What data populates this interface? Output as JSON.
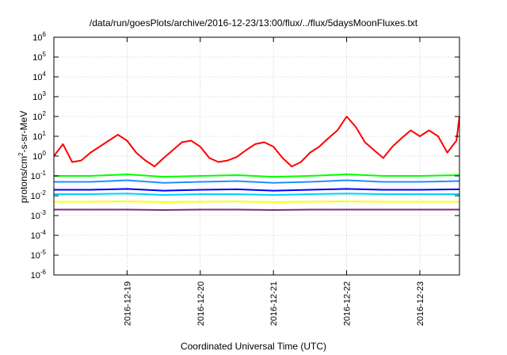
{
  "chart_data": {
    "type": "line",
    "title": "/data/run/goesPlots/archive/2016-12-23/13:00/flux/../flux/5daysMoonFluxes.txt",
    "xlabel": "Coordinated Universal Time (UTC)",
    "ylabel": "protons/cm²-s-sr-MeV",
    "ylabel_parts": {
      "pre": "protons/cm",
      "sup": "2",
      "post": "-s-sr-MeV"
    },
    "x_range": [
      "2016-12-18T00:00",
      "2016-12-23T13:00"
    ],
    "x_ticks": [
      "2016-12-19",
      "2016-12-20",
      "2016-12-21",
      "2016-12-22",
      "2016-12-23"
    ],
    "y_scale": "log",
    "ylim": [
      1e-06,
      1000000.0
    ],
    "y_ticks": [
      {
        "base": "10",
        "exp": "-6"
      },
      {
        "base": "10",
        "exp": "-5"
      },
      {
        "base": "10",
        "exp": "-4"
      },
      {
        "base": "10",
        "exp": "-3"
      },
      {
        "base": "10",
        "exp": "-2"
      },
      {
        "base": "10",
        "exp": "-1"
      },
      {
        "base": "10",
        "exp": "0"
      },
      {
        "base": "10",
        "exp": "1"
      },
      {
        "base": "10",
        "exp": "2"
      },
      {
        "base": "10",
        "exp": "3"
      },
      {
        "base": "10",
        "exp": "4"
      },
      {
        "base": "10",
        "exp": "5"
      },
      {
        "base": "10",
        "exp": "6"
      }
    ],
    "grid": true,
    "series_colors": [
      "#ff0000",
      "#00ff00",
      "#1e90ff",
      "#00d0ff",
      "#0000ff",
      "#ffff00",
      "#7b2d7b"
    ],
    "series": [
      {
        "color": "#ff0000",
        "x": [
          "2016-12-18T00:00",
          "2016-12-18T03:00",
          "2016-12-18T06:00",
          "2016-12-18T09:00",
          "2016-12-18T12:00",
          "2016-12-18T15:00",
          "2016-12-18T18:00",
          "2016-12-18T21:00",
          "2016-12-19T00:00",
          "2016-12-19T03:00",
          "2016-12-19T06:00",
          "2016-12-19T09:00",
          "2016-12-19T12:00",
          "2016-12-19T15:00",
          "2016-12-19T18:00",
          "2016-12-19T21:00",
          "2016-12-20T00:00",
          "2016-12-20T03:00",
          "2016-12-20T06:00",
          "2016-12-20T09:00",
          "2016-12-20T12:00",
          "2016-12-20T15:00",
          "2016-12-20T18:00",
          "2016-12-20T21:00",
          "2016-12-21T00:00",
          "2016-12-21T03:00",
          "2016-12-21T06:00",
          "2016-12-21T09:00",
          "2016-12-21T12:00",
          "2016-12-21T15:00",
          "2016-12-21T18:00",
          "2016-12-21T21:00",
          "2016-12-22T00:00",
          "2016-12-22T03:00",
          "2016-12-22T06:00",
          "2016-12-22T09:00",
          "2016-12-22T12:00",
          "2016-12-22T15:00",
          "2016-12-22T18:00",
          "2016-12-22T21:00",
          "2016-12-23T00:00",
          "2016-12-23T03:00",
          "2016-12-23T06:00",
          "2016-12-23T09:00",
          "2016-12-23T12:00",
          "2016-12-23T13:00"
        ],
        "values": [
          1.0,
          4.0,
          0.5,
          0.6,
          1.5,
          3,
          6,
          12,
          6,
          1.5,
          0.6,
          0.3,
          0.8,
          2,
          5,
          6,
          3,
          0.8,
          0.5,
          0.6,
          0.9,
          2,
          4,
          5,
          3,
          0.8,
          0.3,
          0.5,
          1.5,
          3,
          8,
          20,
          100,
          30,
          5,
          2,
          0.8,
          3,
          8,
          20,
          10,
          20,
          10,
          1.5,
          6,
          100
        ]
      },
      {
        "color": "#00ff00",
        "x": [
          "2016-12-18T00:00",
          "2016-12-18T12:00",
          "2016-12-19T00:00",
          "2016-12-19T12:00",
          "2016-12-20T00:00",
          "2016-12-20T12:00",
          "2016-12-21T00:00",
          "2016-12-21T12:00",
          "2016-12-22T00:00",
          "2016-12-22T12:00",
          "2016-12-23T00:00",
          "2016-12-23T13:00"
        ],
        "values": [
          0.1,
          0.1,
          0.12,
          0.09,
          0.1,
          0.11,
          0.09,
          0.1,
          0.12,
          0.1,
          0.1,
          0.11
        ]
      },
      {
        "color": "#1e90ff",
        "x": [
          "2016-12-18T00:00",
          "2016-12-18T12:00",
          "2016-12-19T00:00",
          "2016-12-19T12:00",
          "2016-12-20T00:00",
          "2016-12-20T12:00",
          "2016-12-21T00:00",
          "2016-12-21T12:00",
          "2016-12-22T00:00",
          "2016-12-22T12:00",
          "2016-12-23T00:00",
          "2016-12-23T13:00"
        ],
        "values": [
          0.05,
          0.05,
          0.06,
          0.045,
          0.05,
          0.055,
          0.045,
          0.05,
          0.06,
          0.05,
          0.05,
          0.055
        ]
      },
      {
        "color": "#00d0ff",
        "x": [
          "2016-12-18T00:00",
          "2016-12-18T12:00",
          "2016-12-19T00:00",
          "2016-12-19T12:00",
          "2016-12-20T00:00",
          "2016-12-20T12:00",
          "2016-12-21T00:00",
          "2016-12-21T12:00",
          "2016-12-22T00:00",
          "2016-12-22T12:00",
          "2016-12-23T00:00",
          "2016-12-23T13:00"
        ],
        "values": [
          0.012,
          0.012,
          0.013,
          0.011,
          0.012,
          0.012,
          0.011,
          0.012,
          0.013,
          0.012,
          0.012,
          0.012
        ]
      },
      {
        "color": "#0000ff",
        "x": [
          "2016-12-18T00:00",
          "2016-12-18T12:00",
          "2016-12-19T00:00",
          "2016-12-19T12:00",
          "2016-12-20T00:00",
          "2016-12-20T12:00",
          "2016-12-21T00:00",
          "2016-12-21T12:00",
          "2016-12-22T00:00",
          "2016-12-22T12:00",
          "2016-12-23T00:00",
          "2016-12-23T13:00"
        ],
        "values": [
          0.02,
          0.02,
          0.022,
          0.018,
          0.02,
          0.021,
          0.018,
          0.02,
          0.022,
          0.02,
          0.02,
          0.021
        ]
      },
      {
        "color": "#ffff00",
        "x": [
          "2016-12-18T00:00",
          "2016-12-18T12:00",
          "2016-12-19T00:00",
          "2016-12-19T12:00",
          "2016-12-20T00:00",
          "2016-12-20T12:00",
          "2016-12-21T00:00",
          "2016-12-21T12:00",
          "2016-12-22T00:00",
          "2016-12-22T12:00",
          "2016-12-23T00:00",
          "2016-12-23T13:00"
        ],
        "values": [
          0.005,
          0.005,
          0.0052,
          0.0048,
          0.005,
          0.0051,
          0.0048,
          0.005,
          0.0052,
          0.005,
          0.005,
          0.005
        ]
      },
      {
        "color": "#7b2d7b",
        "x": [
          "2016-12-18T00:00",
          "2016-12-18T12:00",
          "2016-12-19T00:00",
          "2016-12-19T12:00",
          "2016-12-20T00:00",
          "2016-12-20T12:00",
          "2016-12-21T00:00",
          "2016-12-21T12:00",
          "2016-12-22T00:00",
          "2016-12-22T12:00",
          "2016-12-23T00:00",
          "2016-12-23T13:00"
        ],
        "values": [
          0.002,
          0.002,
          0.002,
          0.0019,
          0.002,
          0.002,
          0.0019,
          0.002,
          0.002,
          0.002,
          0.002,
          0.002
        ]
      }
    ]
  }
}
